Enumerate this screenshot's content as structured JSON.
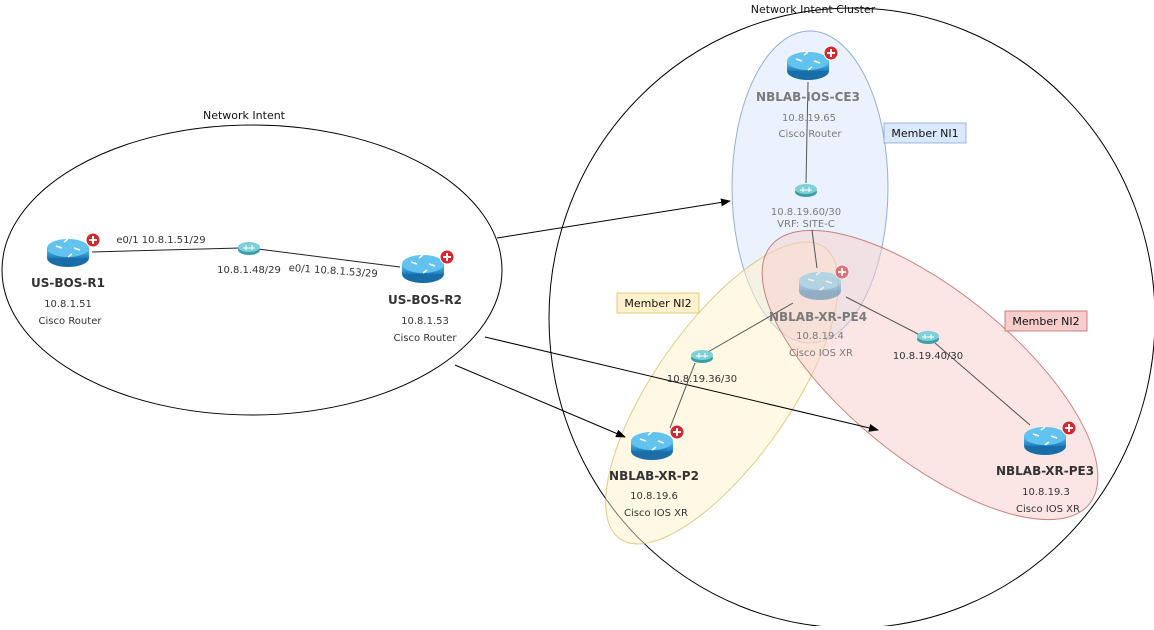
{
  "groups": {
    "network_intent": "Network Intent",
    "cluster": "Network Intent Cluster",
    "member_ni1": "Member NI1",
    "member_ni2_left": "Member NI2",
    "member_ni2_right": "Member NI2"
  },
  "colors": {
    "ni1_fill": "#dae8fc",
    "ni1_stroke": "#6c8ebf",
    "ni2_yellow_fill": "#fff2cc",
    "ni2_yellow_stroke": "#d6b656",
    "ni2_red_fill": "#f8cecc",
    "ni2_red_stroke": "#b85450",
    "router": "#2f9bd6",
    "badge": "#d9262b"
  },
  "nodes": {
    "r1": {
      "name": "US-BOS-R1",
      "ip": "10.8.1.51",
      "type": "Cisco Router"
    },
    "r2": {
      "name": "US-BOS-R2",
      "ip": "10.8.1.53",
      "type": "Cisco Router"
    },
    "ce3": {
      "name": "NBLAB-IOS-CE3",
      "ip": "10.8.19.65",
      "type": "Cisco Router"
    },
    "pe4": {
      "name": "NBLAB-XR-PE4",
      "ip": "10.8.19.4",
      "type": "Cisco IOS XR"
    },
    "p2": {
      "name": "NBLAB-XR-P2",
      "ip": "10.8.19.6",
      "type": "Cisco IOS XR"
    },
    "pe3": {
      "name": "NBLAB-XR-PE3",
      "ip": "10.8.19.3",
      "type": "Cisco IOS XR"
    }
  },
  "subnets": {
    "s1": "10.8.1.48/29",
    "s2": "10.8.19.60/30",
    "s2_vrf": "VRF: SITE-C",
    "s3": "10.8.19.36/30",
    "s4": "10.8.19.40/30"
  },
  "links": {
    "r1_if": "e0/1 10.8.1.51/29",
    "r2_if": "e0/1 10.8.1.53/29"
  }
}
